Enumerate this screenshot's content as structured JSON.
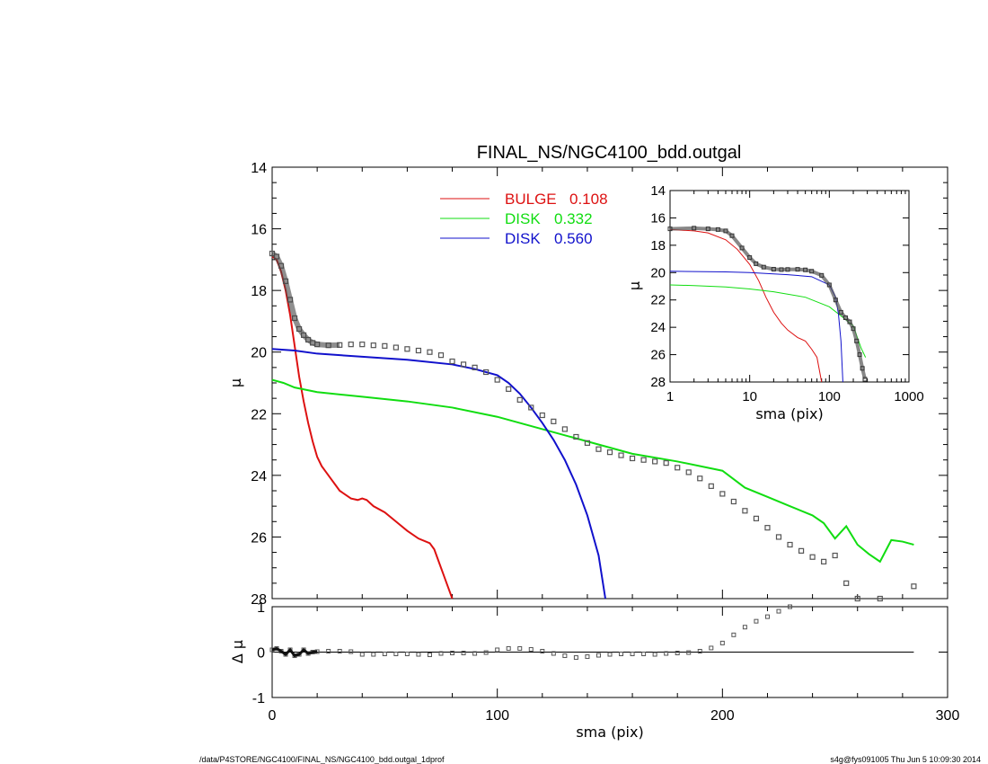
{
  "footer": {
    "left": "/data/P4STORE/NGC4100/FINAL_NS/NGC4100_bdd.outgal_1dprof",
    "right": "s4g@fys091005  Thu Jun  5 10:09:30 2014"
  },
  "colors": {
    "bulge": "#dd1111",
    "disk1": "#11dd11",
    "disk2": "#1111cc",
    "data": "#555555"
  },
  "chart_data": [
    {
      "id": "main",
      "type": "line",
      "title": "FINAL_NS/NGC4100_bdd.outgal",
      "xlabel": "",
      "ylabel": "μ",
      "xlim": [
        0,
        300
      ],
      "ylim": [
        28,
        14
      ],
      "yticks": [
        "14",
        "16",
        "18",
        "20",
        "22",
        "24",
        "26",
        "28"
      ],
      "legend": {
        "placement": "top-center",
        "entries": [
          {
            "label": "BULGE",
            "value": "0.108",
            "color": "#dd1111"
          },
          {
            "label": "DISK",
            "value": "0.332",
            "color": "#11dd11"
          },
          {
            "label": "DISK",
            "value": "0.560",
            "color": "#1111cc"
          }
        ]
      },
      "series": [
        {
          "name": "BULGE 0.108",
          "color": "#dd1111",
          "x": [
            0,
            2,
            4,
            6,
            8,
            10,
            12,
            14,
            16,
            18,
            20,
            22,
            24,
            26,
            28,
            30,
            35,
            38,
            40,
            42,
            45,
            50,
            55,
            60,
            65,
            70,
            72,
            74,
            76,
            78,
            80
          ],
          "y": [
            16.9,
            17.0,
            17.4,
            18.0,
            18.8,
            19.8,
            20.8,
            21.6,
            22.3,
            22.9,
            23.4,
            23.7,
            23.9,
            24.1,
            24.3,
            24.5,
            24.75,
            24.8,
            24.75,
            24.8,
            25.0,
            25.2,
            25.5,
            25.8,
            26.05,
            26.2,
            26.4,
            26.8,
            27.2,
            27.6,
            28.0
          ]
        },
        {
          "name": "DISK 0.332",
          "color": "#11dd11",
          "x": [
            0,
            5,
            10,
            20,
            40,
            60,
            80,
            100,
            120,
            140,
            160,
            180,
            200,
            210,
            220,
            230,
            240,
            245,
            250,
            255,
            260,
            265,
            270,
            275,
            280,
            285
          ],
          "y": [
            20.9,
            21.0,
            21.15,
            21.3,
            21.45,
            21.6,
            21.8,
            22.1,
            22.5,
            22.9,
            23.3,
            23.55,
            23.85,
            24.4,
            24.7,
            25.0,
            25.3,
            25.55,
            26.05,
            25.65,
            26.25,
            26.55,
            26.8,
            26.1,
            26.15,
            26.25
          ]
        },
        {
          "name": "DISK 0.560",
          "color": "#1111cc",
          "x": [
            0,
            10,
            20,
            40,
            60,
            80,
            90,
            100,
            105,
            110,
            115,
            120,
            125,
            130,
            135,
            140,
            145,
            148
          ],
          "y": [
            19.9,
            19.95,
            20.05,
            20.15,
            20.25,
            20.4,
            20.55,
            20.75,
            21.0,
            21.35,
            21.8,
            22.3,
            22.85,
            23.5,
            24.3,
            25.3,
            26.6,
            28.0
          ]
        },
        {
          "name": "data",
          "color": "#555555",
          "marker": "square",
          "x": [
            0,
            2,
            4,
            6,
            8,
            10,
            12,
            14,
            16,
            18,
            20,
            25,
            30,
            35,
            40,
            45,
            50,
            55,
            60,
            65,
            70,
            75,
            80,
            85,
            90,
            95,
            100,
            105,
            110,
            115,
            120,
            125,
            130,
            135,
            140,
            145,
            150,
            155,
            160,
            165,
            170,
            175,
            180,
            185,
            190,
            195,
            200,
            205,
            210,
            215,
            220,
            225,
            230,
            235,
            240,
            245,
            250,
            255,
            260,
            270,
            285
          ],
          "y": [
            16.8,
            16.9,
            17.2,
            17.7,
            18.3,
            18.9,
            19.25,
            19.45,
            19.6,
            19.7,
            19.75,
            19.78,
            19.77,
            19.75,
            19.75,
            19.78,
            19.8,
            19.85,
            19.9,
            19.95,
            20.0,
            20.1,
            20.3,
            20.4,
            20.5,
            20.65,
            20.9,
            21.2,
            21.55,
            21.8,
            22.05,
            22.25,
            22.5,
            22.75,
            22.95,
            23.15,
            23.25,
            23.35,
            23.45,
            23.5,
            23.55,
            23.6,
            23.75,
            23.9,
            24.1,
            24.35,
            24.6,
            24.85,
            25.15,
            25.4,
            25.7,
            26.0,
            26.25,
            26.45,
            26.65,
            26.8,
            26.6,
            27.5,
            28.0,
            28.0,
            27.6
          ]
        }
      ]
    },
    {
      "id": "residual",
      "type": "scatter",
      "xlabel": "sma (pix)",
      "ylabel": "Δ μ",
      "xlim": [
        0,
        300
      ],
      "ylim": [
        -1,
        1
      ],
      "xticks": [
        "0",
        "100",
        "200",
        "300"
      ],
      "yticks": [
        "-1",
        "0",
        "1"
      ],
      "series": [
        {
          "name": "residual",
          "color": "#555555",
          "marker": "square",
          "x": [
            0,
            2,
            4,
            6,
            8,
            10,
            12,
            14,
            16,
            18,
            20,
            25,
            30,
            35,
            40,
            45,
            50,
            55,
            60,
            65,
            70,
            75,
            80,
            85,
            90,
            95,
            100,
            105,
            110,
            115,
            120,
            125,
            130,
            135,
            140,
            145,
            150,
            155,
            160,
            165,
            170,
            175,
            180,
            185,
            190,
            195,
            200,
            205,
            210,
            215,
            220,
            225,
            230
          ],
          "y": [
            0.05,
            0.08,
            0.02,
            -0.05,
            0.05,
            -0.08,
            -0.05,
            0.05,
            -0.03,
            0.0,
            0.01,
            0.02,
            0.02,
            0.01,
            -0.05,
            -0.05,
            -0.04,
            -0.04,
            -0.04,
            -0.05,
            -0.06,
            -0.03,
            -0.02,
            -0.02,
            -0.03,
            -0.01,
            0.05,
            0.08,
            0.08,
            0.06,
            0.02,
            -0.03,
            -0.08,
            -0.12,
            -0.1,
            -0.07,
            -0.05,
            -0.04,
            -0.04,
            -0.04,
            -0.05,
            -0.03,
            -0.02,
            -0.01,
            0.02,
            0.09,
            0.2,
            0.38,
            0.55,
            0.68,
            0.78,
            0.9,
            1.0
          ]
        }
      ]
    },
    {
      "id": "inset",
      "type": "line",
      "xlabel": "sma (pix)",
      "ylabel": "μ",
      "xscale": "log",
      "xlim": [
        1,
        1000
      ],
      "ylim": [
        28,
        14
      ],
      "xticks": [
        "1",
        "10",
        "100",
        "1000"
      ],
      "yticks": [
        "14",
        "16",
        "18",
        "20",
        "22",
        "24",
        "26",
        "28"
      ],
      "series": [
        {
          "name": "BULGE 0.108",
          "color": "#dd1111",
          "x": [
            1,
            2,
            3,
            5,
            7,
            10,
            13,
            16,
            20,
            25,
            30,
            40,
            50,
            60,
            70,
            80
          ],
          "y": [
            16.85,
            16.95,
            17.1,
            17.6,
            18.3,
            19.4,
            20.6,
            21.8,
            22.9,
            23.7,
            24.2,
            24.75,
            25.0,
            25.6,
            26.2,
            28.0
          ]
        },
        {
          "name": "DISK 0.332",
          "color": "#11dd11",
          "x": [
            1,
            2,
            5,
            10,
            20,
            50,
            100,
            150,
            200,
            250,
            285
          ],
          "y": [
            20.9,
            20.95,
            21.05,
            21.2,
            21.4,
            21.8,
            22.5,
            23.3,
            23.9,
            25.5,
            26.2
          ]
        },
        {
          "name": "DISK 0.560",
          "color": "#1111cc",
          "x": [
            1,
            5,
            10,
            30,
            60,
            100,
            120,
            130,
            140,
            148
          ],
          "y": [
            19.9,
            19.95,
            20.0,
            20.15,
            20.3,
            20.9,
            21.8,
            23.0,
            25.0,
            28.0
          ]
        },
        {
          "name": "data",
          "color": "#555555",
          "marker": "square",
          "x": [
            1,
            2,
            3,
            4,
            5,
            6,
            8,
            10,
            12,
            15,
            20,
            25,
            30,
            40,
            50,
            60,
            80,
            100,
            120,
            140,
            160,
            180,
            200,
            220,
            240,
            260,
            280
          ],
          "y": [
            16.8,
            16.75,
            16.8,
            16.85,
            16.95,
            17.3,
            18.2,
            18.9,
            19.35,
            19.6,
            19.75,
            19.78,
            19.77,
            19.76,
            19.8,
            19.9,
            20.2,
            20.9,
            22.0,
            22.9,
            23.3,
            23.6,
            24.1,
            25.0,
            26.0,
            27.0,
            27.8
          ]
        }
      ]
    }
  ]
}
